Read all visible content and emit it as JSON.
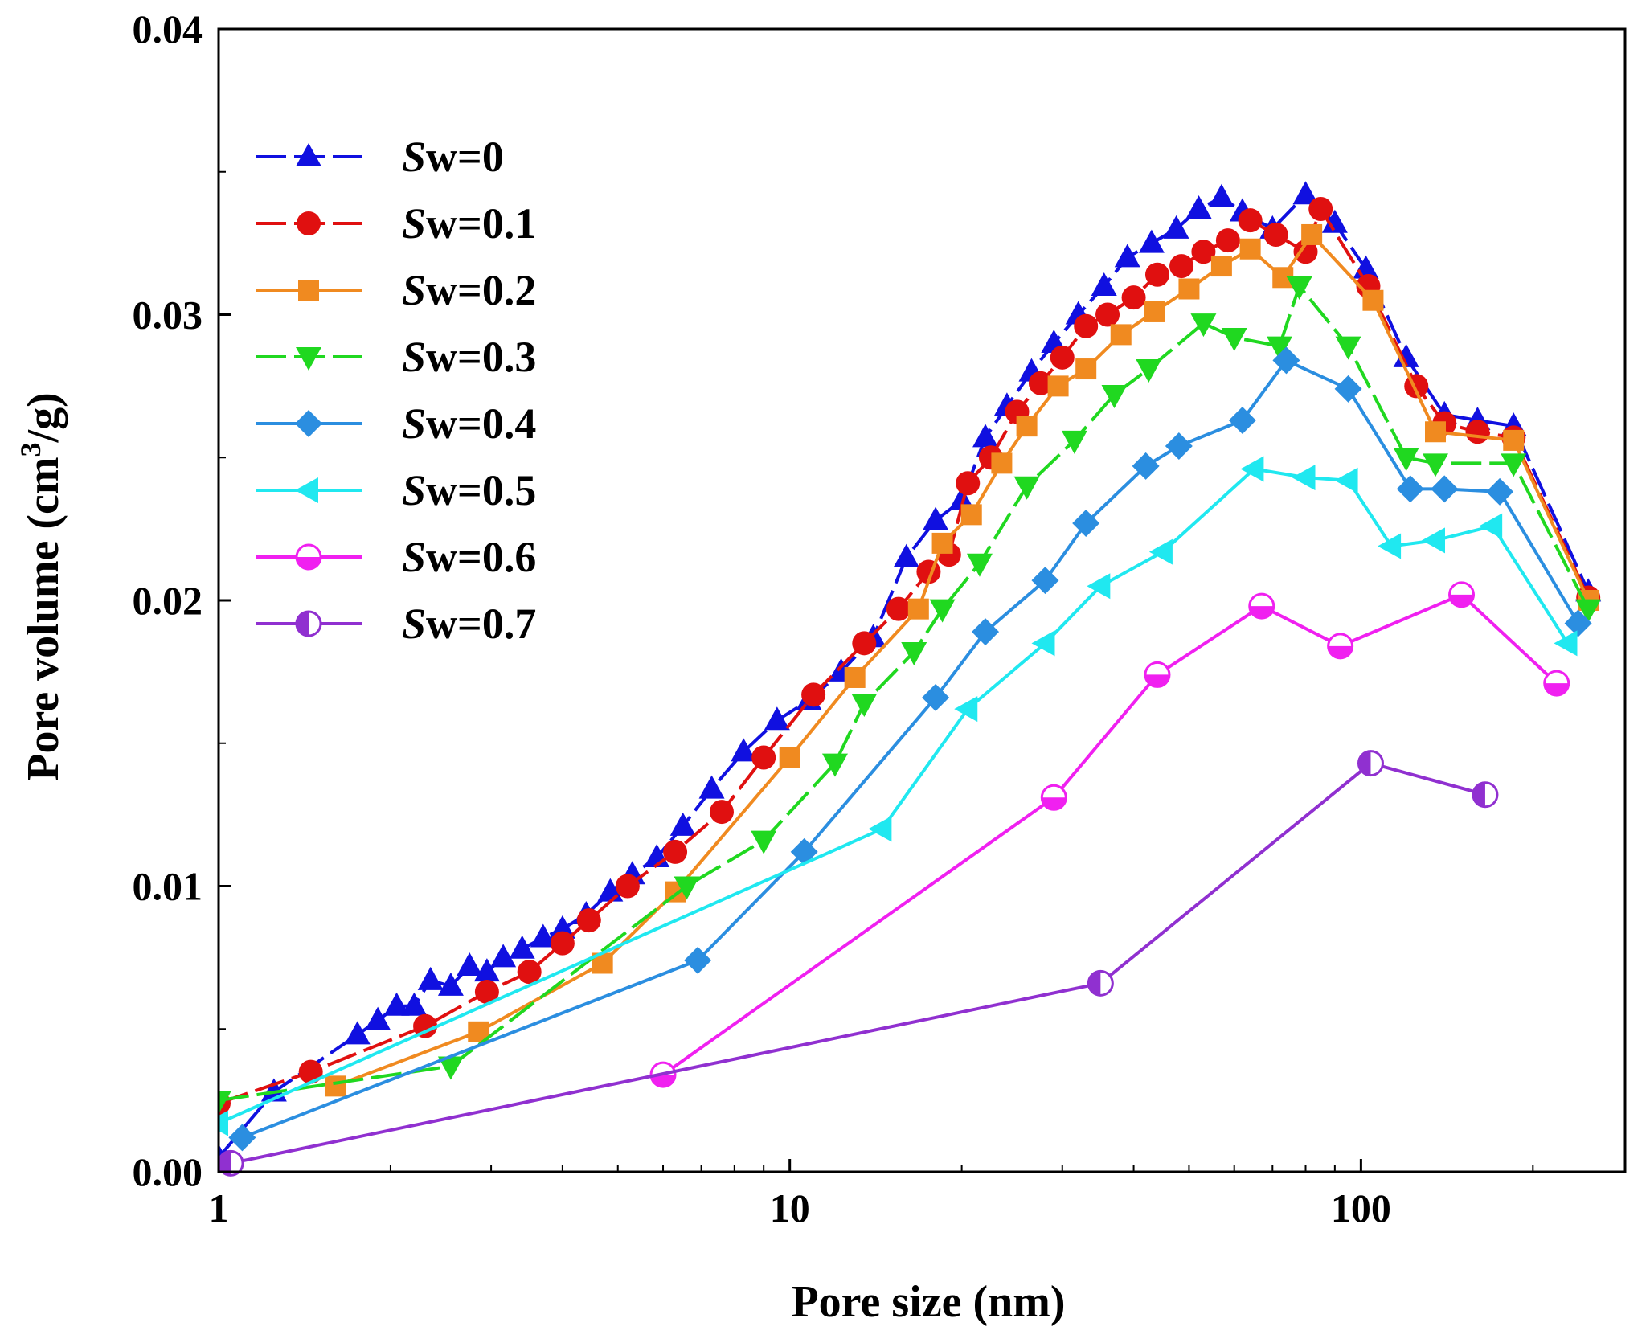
{
  "chart_data": {
    "type": "line",
    "xscale": "log",
    "xlabel": "Pore size (nm)",
    "ylabel": "Pore volume (cm³/g)",
    "ylabel_parts": {
      "pre": "Pore volume (cm",
      "sup": "3",
      "post": "/g)"
    },
    "xlim": [
      1,
      290
    ],
    "ylim": [
      0,
      0.04
    ],
    "xticks": [
      1,
      10,
      100
    ],
    "xtick_labels": [
      "1",
      "10",
      "100"
    ],
    "yticks": [
      0,
      0.01,
      0.02,
      0.03,
      0.04
    ],
    "ytick_labels": [
      "0.00",
      "0.01",
      "0.02",
      "0.03",
      "0.04"
    ],
    "legend_position": "top-left",
    "series": [
      {
        "name": "Sw=0",
        "name_prefix": "S",
        "name_suffix": "w=0",
        "color": "#1010e0",
        "marker": "triangle-up",
        "dash": true,
        "x": [
          1.0,
          1.25,
          1.75,
          1.9,
          2.05,
          2.2,
          2.35,
          2.55,
          2.75,
          2.95,
          3.15,
          3.4,
          3.7,
          4.0,
          4.4,
          4.85,
          5.3,
          5.85,
          6.5,
          7.3,
          8.3,
          9.5,
          10.8,
          12.3,
          14.0,
          16.0,
          18.0,
          20.0,
          22.0,
          24.0,
          26.5,
          29.0,
          32.0,
          35.5,
          39.0,
          43.0,
          47.5,
          52.0,
          57.0,
          62.0,
          70.0,
          80.0,
          90.0,
          102.0,
          120.0,
          140.0,
          160.0,
          185.0,
          250.0
        ],
        "y": [
          0.0005,
          0.0028,
          0.0048,
          0.0053,
          0.0058,
          0.0058,
          0.0067,
          0.0065,
          0.0072,
          0.007,
          0.0075,
          0.0078,
          0.0082,
          0.0085,
          0.009,
          0.0098,
          0.0104,
          0.011,
          0.0121,
          0.0134,
          0.0147,
          0.0158,
          0.0165,
          0.0175,
          0.0187,
          0.0215,
          0.0228,
          0.0235,
          0.0257,
          0.0268,
          0.028,
          0.029,
          0.03,
          0.031,
          0.032,
          0.0325,
          0.033,
          0.0337,
          0.0341,
          0.0336,
          0.033,
          0.0342,
          0.0332,
          0.0316,
          0.0285,
          0.0265,
          0.0263,
          0.0261,
          0.0203
        ]
      },
      {
        "name": "Sw=0.1",
        "name_prefix": "S",
        "name_suffix": "w=0.1",
        "color": "#e01010",
        "marker": "circle",
        "dash": true,
        "x": [
          1.0,
          1.45,
          2.3,
          2.95,
          3.5,
          4.0,
          4.45,
          5.2,
          6.3,
          7.6,
          9.0,
          11.0,
          13.5,
          15.5,
          17.5,
          19.0,
          20.5,
          22.5,
          25.0,
          27.5,
          30.0,
          33.0,
          36.0,
          40.0,
          44.0,
          48.5,
          53.0,
          58.5,
          64.0,
          71.0,
          80.0,
          85.0,
          103.0,
          125.0,
          140.0,
          160.0,
          185.0,
          250.0
        ],
        "y": [
          0.0024,
          0.0035,
          0.0051,
          0.0063,
          0.007,
          0.008,
          0.0088,
          0.01,
          0.0112,
          0.0126,
          0.0145,
          0.0167,
          0.0185,
          0.0197,
          0.021,
          0.0216,
          0.0241,
          0.025,
          0.0266,
          0.0276,
          0.0285,
          0.0296,
          0.03,
          0.0306,
          0.0314,
          0.0317,
          0.0322,
          0.0326,
          0.0333,
          0.0328,
          0.0322,
          0.0337,
          0.031,
          0.0275,
          0.0262,
          0.0259,
          0.0257,
          0.0201
        ]
      },
      {
        "name": "Sw=0.2",
        "name_prefix": "S",
        "name_suffix": "w=0.2",
        "color": "#f08a20",
        "marker": "square",
        "dash": false,
        "x": [
          1.6,
          2.85,
          4.7,
          6.3,
          10.0,
          13.0,
          16.8,
          18.5,
          20.8,
          23.5,
          26.0,
          29.5,
          33.0,
          38.0,
          43.5,
          50.0,
          57.0,
          64.0,
          73.0,
          82.0,
          105.0,
          135.0,
          185.0,
          250.0
        ],
        "y": [
          0.003,
          0.0049,
          0.0073,
          0.0098,
          0.0145,
          0.0173,
          0.0197,
          0.022,
          0.023,
          0.0248,
          0.0261,
          0.0275,
          0.0281,
          0.0293,
          0.0301,
          0.0309,
          0.0317,
          0.0323,
          0.0313,
          0.0328,
          0.0305,
          0.0259,
          0.0256,
          0.02
        ]
      },
      {
        "name": "Sw=0.3",
        "name_prefix": "S",
        "name_suffix": "w=0.3",
        "color": "#20d820",
        "marker": "triangle-down",
        "dash": true,
        "x": [
          1.0,
          2.55,
          6.6,
          9.0,
          12.0,
          13.5,
          16.5,
          18.5,
          21.5,
          26.0,
          31.5,
          37.0,
          42.5,
          53.0,
          60.0,
          72.0,
          78.0,
          95.0,
          120.0,
          135.0,
          185.0,
          250.0
        ],
        "y": [
          0.0025,
          0.0037,
          0.01,
          0.0116,
          0.0143,
          0.0164,
          0.0182,
          0.0197,
          0.0213,
          0.024,
          0.0256,
          0.0272,
          0.0281,
          0.0297,
          0.0292,
          0.0289,
          0.031,
          0.0289,
          0.025,
          0.0248,
          0.0248,
          0.0197
        ]
      },
      {
        "name": "Sw=0.4",
        "name_prefix": "S",
        "name_suffix": "w=0.4",
        "color": "#2b8ee0",
        "marker": "diamond",
        "dash": false,
        "x": [
          1.1,
          6.9,
          10.6,
          18.0,
          22.0,
          28.0,
          33.0,
          42.0,
          48.0,
          62.0,
          74.0,
          95.0,
          122.0,
          140.0,
          175.0,
          240.0
        ],
        "y": [
          0.0012,
          0.0074,
          0.0112,
          0.0166,
          0.0189,
          0.0207,
          0.0227,
          0.0247,
          0.0254,
          0.0263,
          0.0284,
          0.0274,
          0.0239,
          0.0239,
          0.0238,
          0.0192
        ]
      },
      {
        "name": "Sw=0.5",
        "name_prefix": "S",
        "name_suffix": "w=0.5",
        "color": "#20e8f0",
        "marker": "triangle-left",
        "dash": false,
        "x": [
          1.0,
          14.5,
          20.5,
          28.0,
          35.0,
          45.0,
          65.0,
          80.0,
          95.0,
          113.0,
          135.0,
          170.0,
          230.0
        ],
        "y": [
          0.0017,
          0.012,
          0.0162,
          0.0185,
          0.0205,
          0.0217,
          0.0246,
          0.0243,
          0.0242,
          0.0219,
          0.0221,
          0.0226,
          0.0185
        ]
      },
      {
        "name": "Sw=0.6",
        "name_prefix": "S",
        "name_suffix": "w=0.6",
        "color": "#f020f0",
        "marker": "circle-half-h",
        "dash": false,
        "x": [
          6.0,
          29.0,
          44.0,
          67.0,
          92.0,
          150.0,
          220.0
        ],
        "y": [
          0.0034,
          0.0131,
          0.0174,
          0.0198,
          0.0184,
          0.0202,
          0.0171
        ]
      },
      {
        "name": "Sw=0.7",
        "name_prefix": "S",
        "name_suffix": "w=0.7",
        "color": "#9030d0",
        "marker": "circle-half-v",
        "dash": false,
        "x": [
          1.05,
          35.0,
          104.0,
          165.0
        ],
        "y": [
          0.0003,
          0.0066,
          0.0143,
          0.0132
        ]
      }
    ]
  }
}
